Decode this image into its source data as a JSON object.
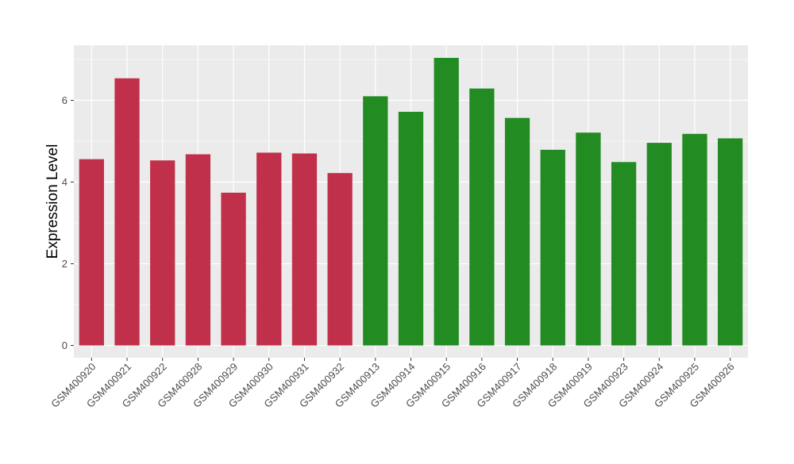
{
  "chart_data": {
    "type": "bar",
    "title": "",
    "xlabel": "",
    "ylabel": "Expression Level",
    "ylim": [
      -0.3,
      7.35
    ],
    "yticks": [
      0,
      2,
      4,
      6
    ],
    "grid": true,
    "legend": "none",
    "background": "#ebebeb",
    "grid_color": "#ffffff",
    "categories": [
      "GSM400920",
      "GSM400921",
      "GSM400922",
      "GSM400928",
      "GSM400929",
      "GSM400930",
      "GSM400931",
      "GSM400932",
      "GSM400913",
      "GSM400914",
      "GSM400915",
      "GSM400916",
      "GSM400917",
      "GSM400918",
      "GSM400919",
      "GSM400923",
      "GSM400924",
      "GSM400925",
      "GSM400926"
    ],
    "values": [
      4.56,
      6.54,
      4.53,
      4.68,
      3.74,
      4.72,
      4.7,
      4.22,
      6.1,
      5.72,
      7.04,
      6.29,
      5.57,
      4.79,
      5.21,
      4.49,
      4.96,
      5.18,
      5.07
    ],
    "colors": [
      "#c1304a",
      "#c1304a",
      "#c1304a",
      "#c1304a",
      "#c1304a",
      "#c1304a",
      "#c1304a",
      "#c1304a",
      "#228b22",
      "#228b22",
      "#228b22",
      "#228b22",
      "#228b22",
      "#228b22",
      "#228b22",
      "#228b22",
      "#228b22",
      "#228b22",
      "#228b22"
    ]
  }
}
